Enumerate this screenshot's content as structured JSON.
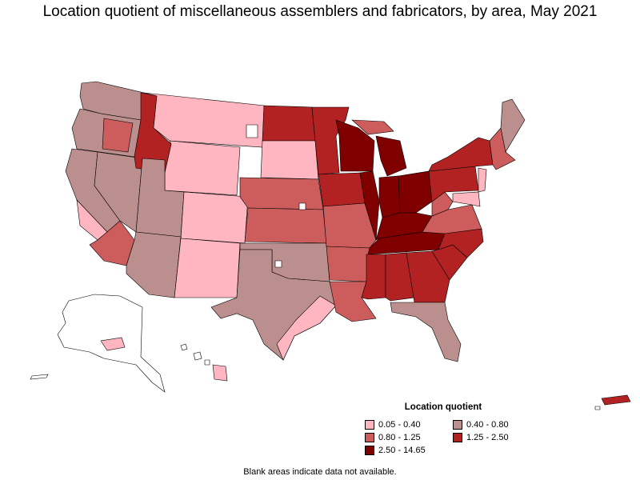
{
  "title": "Location quotient of miscellaneous assemblers and fabricators, by area, May 2021",
  "legend": {
    "title": "Location quotient",
    "items": [
      {
        "label": "0.05 - 0.40",
        "color": "#ffb6c1"
      },
      {
        "label": "0.40 - 0.80",
        "color": "#bc8f8f"
      },
      {
        "label": "0.80 - 1.25",
        "color": "#cd5c5c"
      },
      {
        "label": "1.25 - 2.50",
        "color": "#b22222"
      },
      {
        "label": "2.50 - 14.65",
        "color": "#800000"
      }
    ]
  },
  "footnote": "Blank areas indicate data not available.",
  "colors": {
    "outline": "#000000",
    "no_data": "#ffffff"
  }
}
